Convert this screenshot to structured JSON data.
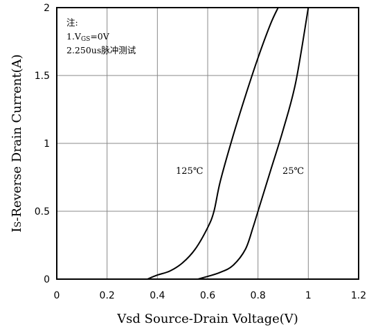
{
  "chart_data": {
    "type": "line",
    "xlabel": "Vsd Source-Drain Voltage(V)",
    "ylabel_prefix": "I",
    "ylabel_sub": "S",
    "ylabel_rest": "-Reverse Drain Current(A)",
    "xlim": [
      0,
      1.2
    ],
    "ylim": [
      0,
      2
    ],
    "x_ticks": [
      "0",
      "0.2",
      "0.4",
      "0.6",
      "0.8",
      "1",
      "1.2"
    ],
    "y_ticks": [
      "0",
      "0.5",
      "1",
      "1.5",
      "2"
    ],
    "grid": true,
    "notes": {
      "title": "注:",
      "line1_prefix": "1.V",
      "line1_sub": "GS",
      "line1_suffix": "=0V",
      "line2": "2.250us脉冲测试"
    },
    "series": [
      {
        "name": "125℃",
        "x": [
          0.36,
          0.4,
          0.45,
          0.5,
          0.55,
          0.6,
          0.625,
          0.65,
          0.7,
          0.75,
          0.8,
          0.85,
          0.88
        ],
        "y": [
          0,
          0.03,
          0.06,
          0.12,
          0.22,
          0.38,
          0.5,
          0.72,
          1.05,
          1.35,
          1.63,
          1.88,
          2.0
        ]
      },
      {
        "name": "25℃",
        "x": [
          0.56,
          0.6,
          0.65,
          0.7,
          0.75,
          0.78,
          0.8,
          0.85,
          0.9,
          0.95,
          1.0
        ],
        "y": [
          0,
          0.02,
          0.05,
          0.1,
          0.22,
          0.38,
          0.5,
          0.8,
          1.1,
          1.45,
          2.0
        ]
      }
    ]
  }
}
